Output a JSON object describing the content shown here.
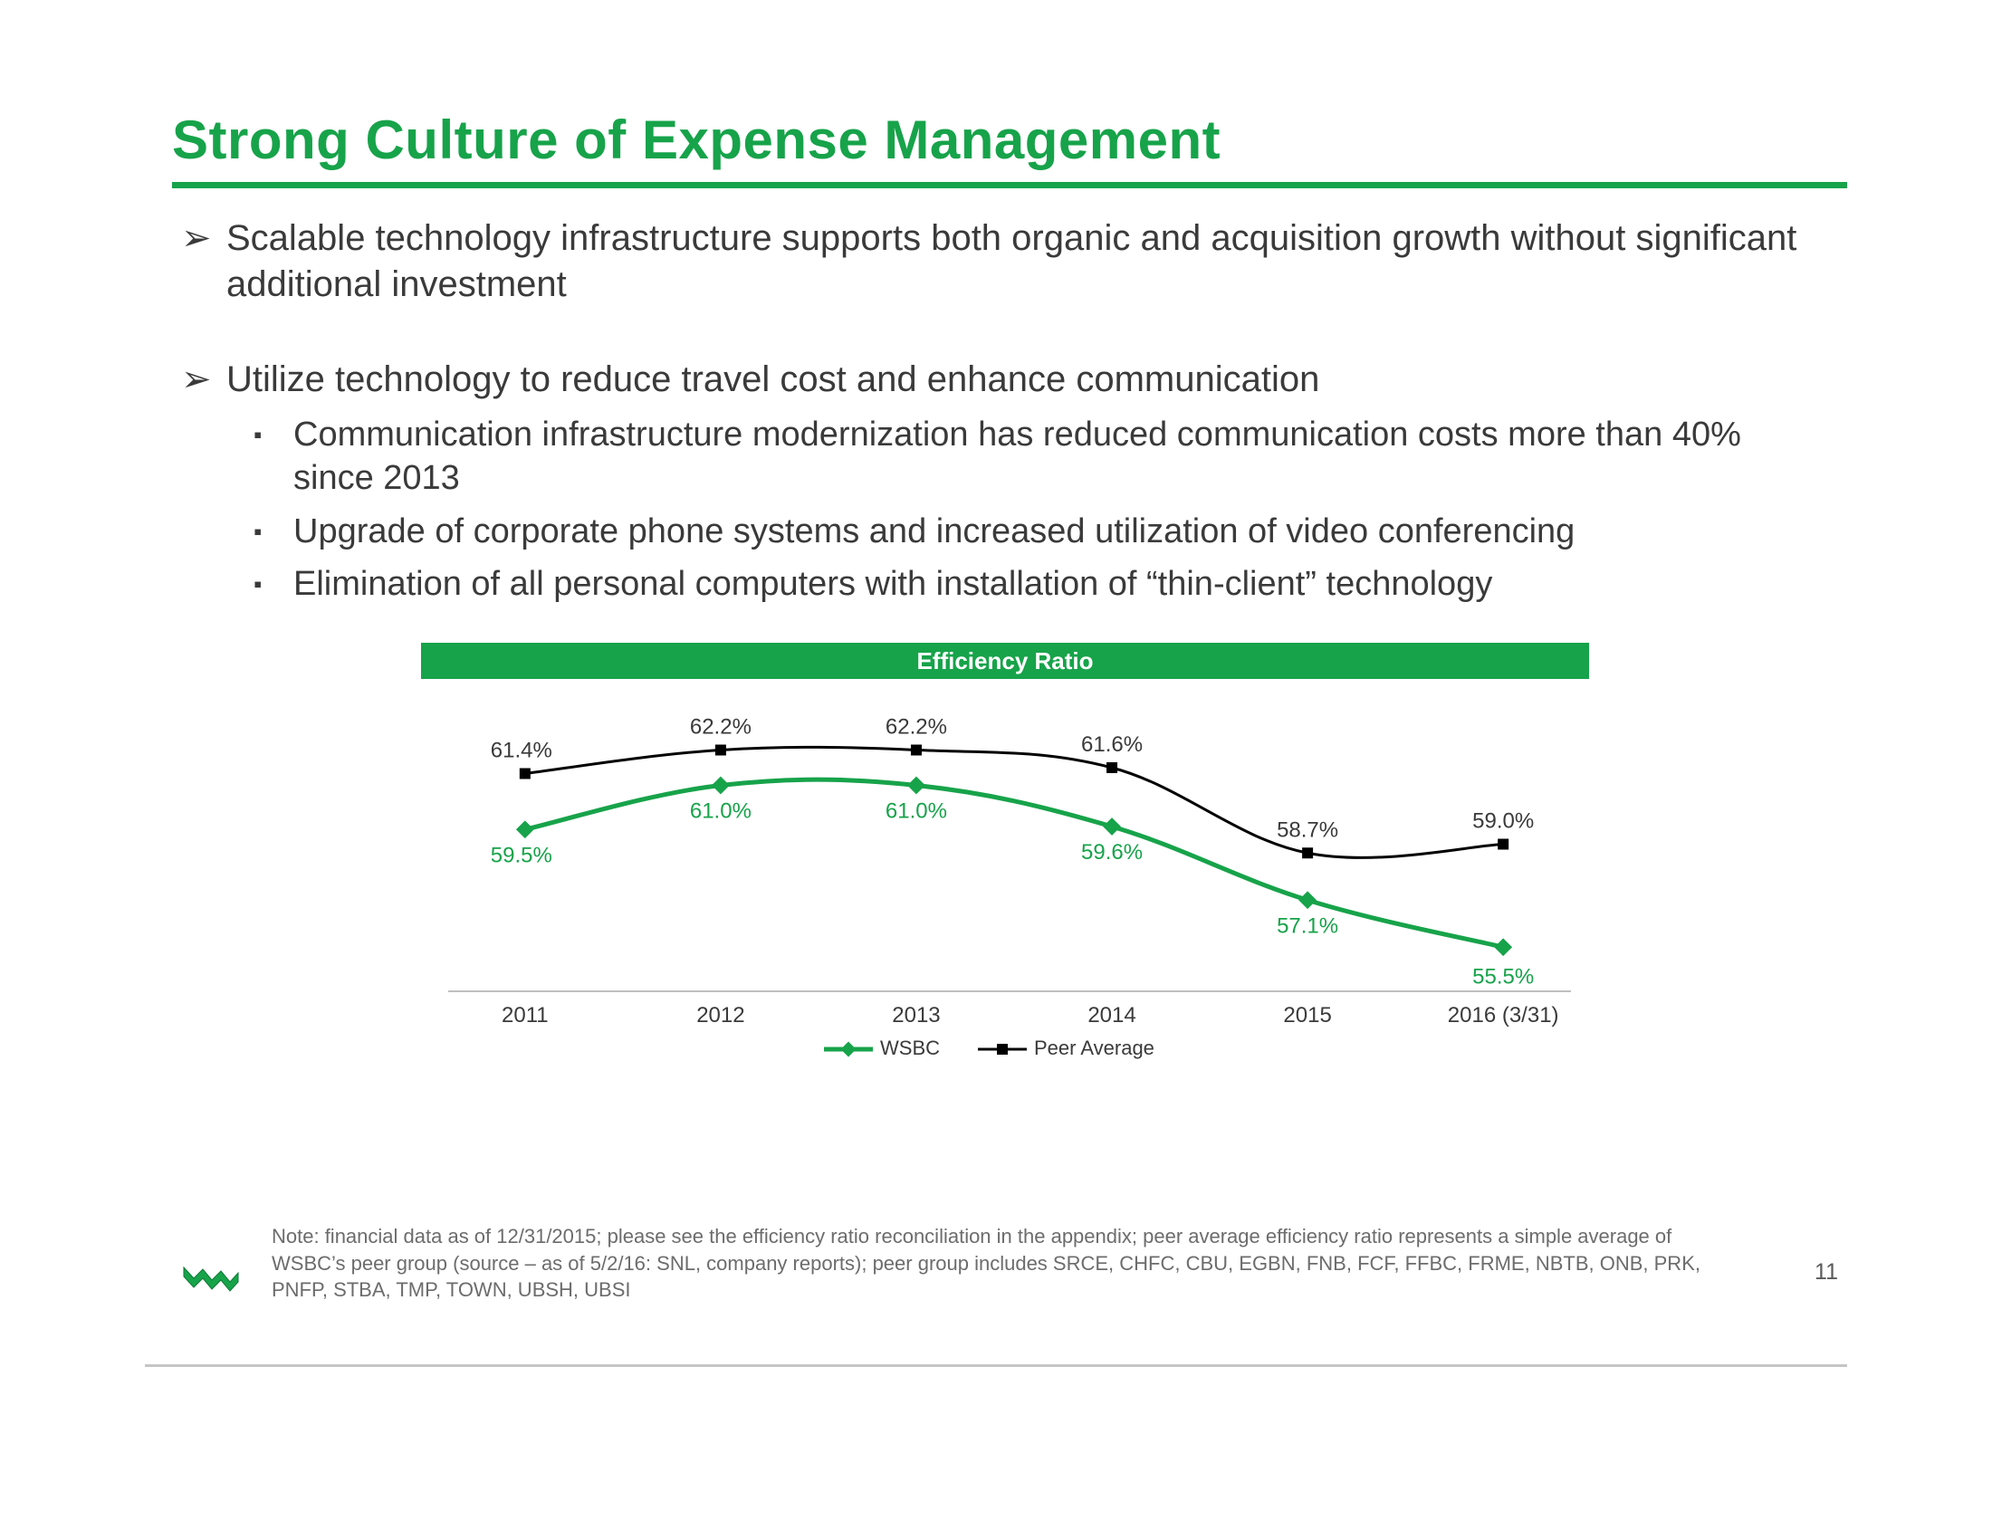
{
  "title": "Strong Culture of Expense Management",
  "bullets": {
    "b1": "Scalable technology infrastructure supports both organic and acquisition growth without significant additional investment",
    "b2": "Utilize technology to reduce travel cost and enhance communication",
    "b2a": "Communication infrastructure modernization has reduced communication costs more than 40% since 2013",
    "b2b": "Upgrade of corporate phone systems and increased utilization of video conferencing",
    "b2c": "Elimination of all personal computers with installation of “thin-client” technology"
  },
  "chart": {
    "type": "line",
    "title": "Efficiency Ratio",
    "title_bg": "#17a34a",
    "title_color": "#ffffff",
    "title_fontsize": 26,
    "background_color": "#ffffff",
    "plot_border_color": "#c0c0c0",
    "axis_label_color": "#3a3a3a",
    "axis_label_fontsize": 24,
    "categories": [
      "2011",
      "2012",
      "2013",
      "2014",
      "2015",
      "2016 (3/31)"
    ],
    "ylim": [
      54,
      64
    ],
    "series": [
      {
        "name": "WSBC",
        "color": "#17a34a",
        "line_width": 5,
        "marker": "diamond",
        "marker_size": 14,
        "label_color": "#17a34a",
        "label_fontsize": 24,
        "values": [
          59.5,
          61.0,
          61.0,
          59.6,
          57.1,
          55.5
        ],
        "labels": [
          "59.5%",
          "61.0%",
          "61.0%",
          "59.6%",
          "57.1%",
          "55.5%"
        ],
        "label_position": "below"
      },
      {
        "name": "Peer Average",
        "color": "#000000",
        "line_width": 3,
        "marker": "square",
        "marker_size": 12,
        "label_color": "#3a3a3a",
        "label_fontsize": 24,
        "values": [
          61.4,
          62.2,
          62.2,
          61.6,
          58.7,
          59.0
        ],
        "labels": [
          "61.4%",
          "62.2%",
          "62.2%",
          "61.6%",
          "58.7%",
          "59.0%"
        ],
        "label_position": "above"
      }
    ],
    "legend_fontsize": 22,
    "legend_color": "#3a3a3a"
  },
  "footnote": "Note: financial data as of 12/31/2015; please see the efficiency ratio reconciliation in the appendix; peer average efficiency ratio represents a simple average of WSBC’s peer group (source – as of 5/2/16: SNL, company reports); peer group includes SRCE, CHFC, CBU, EGBN, FNB, FCF, FFBC, FRME, NBTB, ONB, PRK, PNFP, STBA, TMP, TOWN, UBSH, UBSI",
  "page_number": "11",
  "logo_color": "#17a34a"
}
